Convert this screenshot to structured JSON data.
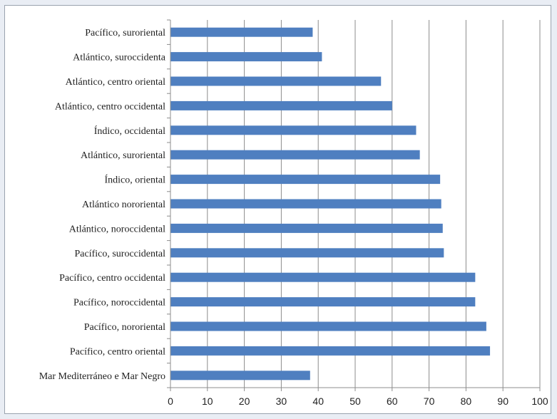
{
  "chart_data": {
    "type": "bar",
    "orientation": "horizontal",
    "categories": [
      "Pacífico, suroriental",
      "Atlántico, suroccidenta",
      "Atlántico, centro oriental",
      "Atlántico, centro occidental",
      "Índico, occidental",
      "Atlántico, suroriental",
      "Índico, oriental",
      "Atlántico nororiental",
      "Atlántico, noroccidental",
      "Pacífico, suroccidental",
      "Pacífico, centro occidental",
      "Pacífico, noroccidental",
      "Pacífico, nororiental",
      "Pacífico, centro oriental",
      "Mar Mediterráneo e Mar Negro"
    ],
    "values": [
      38.5,
      41,
      57,
      60,
      66.5,
      67.5,
      73,
      73.3,
      73.7,
      74,
      82.5,
      82.5,
      85.5,
      86.5,
      37.8
    ],
    "xlim": [
      0,
      100
    ],
    "xticks": [
      "0",
      "10",
      "20",
      "30",
      "40",
      "50",
      "60",
      "70",
      "80",
      "90",
      "100"
    ],
    "grid": "vertical",
    "bar_color": "#4f7fc0",
    "title": "",
    "xlabel": "",
    "ylabel": ""
  }
}
